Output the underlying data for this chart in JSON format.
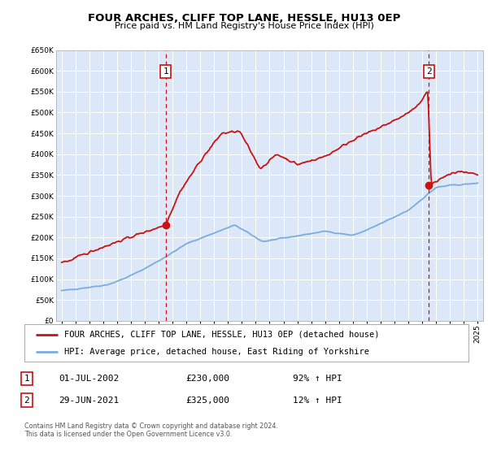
{
  "title": "FOUR ARCHES, CLIFF TOP LANE, HESSLE, HU13 0EP",
  "subtitle": "Price paid vs. HM Land Registry's House Price Index (HPI)",
  "hpi_label": "HPI: Average price, detached house, East Riding of Yorkshire",
  "property_label": "FOUR ARCHES, CLIFF TOP LANE, HESSLE, HU13 0EP (detached house)",
  "footer": "Contains HM Land Registry data © Crown copyright and database right 2024.\nThis data is licensed under the Open Government Licence v3.0.",
  "point1_x": 2002.5,
  "point1_y": 230000,
  "point2_x": 2021.49,
  "point2_y": 325000,
  "vline1_x": 2002.5,
  "vline2_x": 2021.49,
  "label1_date": "01-JUL-2002",
  "label1_price": "£230,000",
  "label1_hpi": "92% ↑ HPI",
  "label2_date": "29-JUN-2021",
  "label2_price": "£325,000",
  "label2_hpi": "12% ↑ HPI",
  "ylim_min": 0,
  "ylim_max": 650000,
  "xlim_left": 1994.6,
  "xlim_right": 2025.4,
  "bg_color": "#dce8f7",
  "fig_bg": "#ffffff",
  "red_color": "#cc1111",
  "blue_color": "#7aacdd",
  "vline_color": "#cc1111",
  "grid_color": "#ffffff",
  "xticks": [
    1995,
    1996,
    1997,
    1998,
    1999,
    2000,
    2001,
    2002,
    2003,
    2004,
    2005,
    2006,
    2007,
    2008,
    2009,
    2010,
    2011,
    2012,
    2013,
    2014,
    2015,
    2016,
    2017,
    2018,
    2019,
    2020,
    2021,
    2022,
    2023,
    2024,
    2025
  ],
  "yticks": [
    0,
    50000,
    100000,
    150000,
    200000,
    250000,
    300000,
    350000,
    400000,
    450000,
    500000,
    550000,
    600000,
    650000
  ],
  "title_fs": 9.5,
  "subtitle_fs": 8.0,
  "tick_fs": 6.5,
  "legend_fs": 7.5,
  "detail_fs": 8.0,
  "footer_fs": 5.8
}
